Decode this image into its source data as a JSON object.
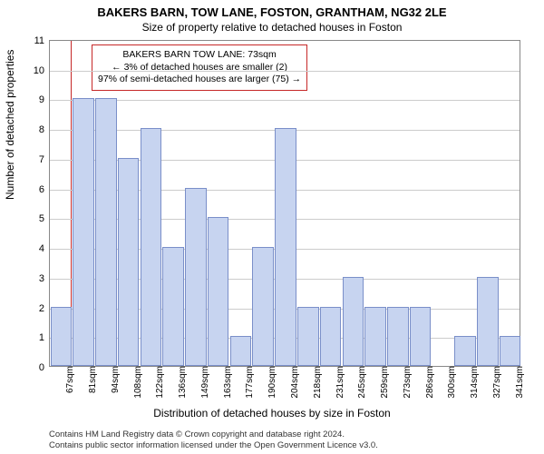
{
  "chart": {
    "type": "bar",
    "title": "BAKERS BARN, TOW LANE, FOSTON, GRANTHAM, NG32 2LE",
    "subtitle": "Size of property relative to detached houses in Foston",
    "title_fontsize": 13,
    "subtitle_fontsize": 12,
    "ylabel": "Number of detached properties",
    "xlabel": "Distribution of detached houses by size in Foston",
    "label_fontsize": 12,
    "ylim": [
      0,
      11
    ],
    "ytick_step": 1,
    "background_color": "#ffffff",
    "grid_color": "#cccccc",
    "border_color": "#888888",
    "bar_fill": "#c7d4f0",
    "bar_stroke": "#7a8fc9",
    "refline_color": "#c62828",
    "refline_x": "73sqm",
    "bar_width": 0.95,
    "categories": [
      "67sqm",
      "81sqm",
      "94sqm",
      "108sqm",
      "122sqm",
      "136sqm",
      "149sqm",
      "163sqm",
      "177sqm",
      "190sqm",
      "204sqm",
      "218sqm",
      "231sqm",
      "245sqm",
      "259sqm",
      "273sqm",
      "286sqm",
      "300sqm",
      "314sqm",
      "327sqm",
      "341sqm"
    ],
    "values": [
      2,
      9,
      9,
      7,
      8,
      4,
      6,
      5,
      1,
      4,
      8,
      2,
      2,
      3,
      2,
      2,
      2,
      0,
      1,
      3,
      1
    ],
    "xtick_labels": [
      "67sqm",
      "81sqm",
      "94sqm",
      "108sqm",
      "122sqm",
      "136sqm",
      "149sqm",
      "163sqm",
      "177sqm",
      "190sqm",
      "204sqm",
      "218sqm",
      "231sqm",
      "245sqm",
      "259sqm",
      "273sqm",
      "286sqm",
      "300sqm",
      "314sqm",
      "327sqm",
      "341sqm"
    ],
    "annotation": {
      "line1": "BAKERS BARN TOW LANE: 73sqm",
      "line2": "← 3% of detached houses are smaller (2)",
      "line3": "97% of semi-detached houses are larger (75) →",
      "border_color": "#c62828",
      "fontsize": 10.5
    },
    "attribution": {
      "line1": "Contains HM Land Registry data © Crown copyright and database right 2024.",
      "line2": "Contains public sector information licensed under the Open Government Licence v3.0."
    }
  }
}
